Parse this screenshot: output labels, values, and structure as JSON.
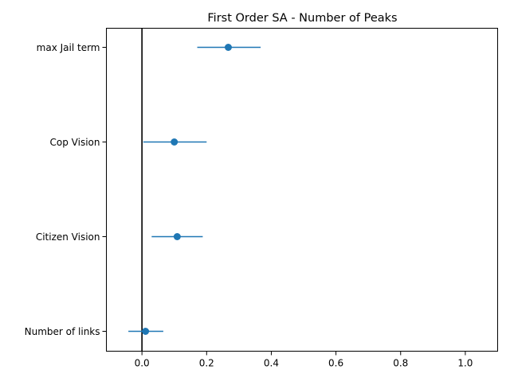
{
  "chart_data": {
    "type": "errorbar",
    "title": "First Order SA - Number of Peaks",
    "xlabel": "",
    "ylabel": "",
    "xlim": [
      -0.11,
      1.1
    ],
    "xticks": [
      0.0,
      0.2,
      0.4,
      0.6,
      0.8,
      1.0
    ],
    "xtick_labels": [
      "0.0",
      "0.2",
      "0.4",
      "0.6",
      "0.8",
      "1.0"
    ],
    "reference_line_x": 0,
    "categories": [
      "max Jail term",
      "Cop Vision",
      "Citizen Vision",
      "Number of links"
    ],
    "values": [
      0.267,
      0.1,
      0.109,
      0.011
    ],
    "ci_low": [
      0.171,
      0.004,
      0.03,
      -0.042
    ],
    "ci_high": [
      0.367,
      0.2,
      0.188,
      0.066
    ],
    "grid": false,
    "colors": {
      "series": "#1f77b4",
      "reference_line": "#000000",
      "axes": "#000000"
    }
  }
}
